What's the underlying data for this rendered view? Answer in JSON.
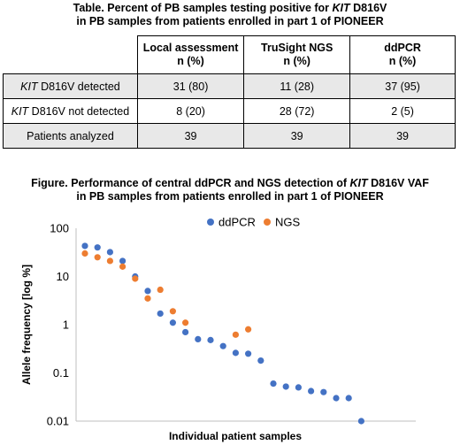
{
  "table": {
    "title_line1_pre": "Table. Percent of PB samples testing positive for ",
    "title_line1_italic": "KIT",
    "title_line1_post": " D816V",
    "title_line2": "in PB samples from patients enrolled in part 1 of PIONEER",
    "headers": [
      {
        "line1": "Local assessment",
        "line2": "n (%)"
      },
      {
        "line1": "TruSight NGS",
        "line2": "n (%)"
      },
      {
        "line1": "ddPCR",
        "line2": "n (%)"
      }
    ],
    "rows": [
      {
        "italic": "KIT",
        "label": " D816V detected",
        "cells": [
          "31 (80)",
          "11 (28)",
          "37 (95)"
        ],
        "shaded": true
      },
      {
        "italic": "KIT",
        "label": " D816V not detected",
        "cells": [
          "8 (20)",
          "28 (72)",
          "2 (5)"
        ],
        "shaded": false
      },
      {
        "italic": "",
        "label": "Patients analyzed",
        "cells": [
          "39",
          "39",
          "39"
        ],
        "shaded": true
      }
    ]
  },
  "figure": {
    "title_line1_pre": "Figure. Performance of central ddPCR and NGS detection of ",
    "title_line1_italic": "KIT",
    "title_line1_post": " D816V VAF",
    "title_line2": "in PB samples from patients enrolled in part 1 of PIONEER"
  },
  "chart_data": {
    "type": "scatter",
    "xlabel": "Individual patient samples",
    "ylabel": "Allele frequency [log %]",
    "yscale": "log",
    "ylim": [
      0.01,
      100
    ],
    "yticks": [
      "100",
      "10",
      "1",
      "0.1",
      "0.01"
    ],
    "legend_position": "top",
    "grid": false,
    "series": [
      {
        "name": "ddPCR",
        "color": "#4472c4",
        "points": [
          {
            "x": 1,
            "y": 43
          },
          {
            "x": 2,
            "y": 40
          },
          {
            "x": 3,
            "y": 32
          },
          {
            "x": 4,
            "y": 21
          },
          {
            "x": 5,
            "y": 10
          },
          {
            "x": 6,
            "y": 5
          },
          {
            "x": 7,
            "y": 1.7
          },
          {
            "x": 8,
            "y": 1.1
          },
          {
            "x": 9,
            "y": 0.7
          },
          {
            "x": 10,
            "y": 0.5
          },
          {
            "x": 11,
            "y": 0.48
          },
          {
            "x": 12,
            "y": 0.36
          },
          {
            "x": 13,
            "y": 0.26
          },
          {
            "x": 14,
            "y": 0.25
          },
          {
            "x": 15,
            "y": 0.18
          },
          {
            "x": 16,
            "y": 0.06
          },
          {
            "x": 17,
            "y": 0.052
          },
          {
            "x": 18,
            "y": 0.05
          },
          {
            "x": 19,
            "y": 0.042
          },
          {
            "x": 20,
            "y": 0.04
          },
          {
            "x": 21,
            "y": 0.03
          },
          {
            "x": 22,
            "y": 0.03
          },
          {
            "x": 23,
            "y": 0.01
          }
        ]
      },
      {
        "name": "NGS",
        "color": "#ed7d31",
        "points": [
          {
            "x": 1,
            "y": 30
          },
          {
            "x": 2,
            "y": 25
          },
          {
            "x": 3,
            "y": 21
          },
          {
            "x": 4,
            "y": 16
          },
          {
            "x": 5,
            "y": 9
          },
          {
            "x": 6,
            "y": 3.5
          },
          {
            "x": 7,
            "y": 5.3
          },
          {
            "x": 8,
            "y": 1.9
          },
          {
            "x": 9,
            "y": 1.1
          },
          {
            "x": 13,
            "y": 0.62
          },
          {
            "x": 14,
            "y": 0.8
          }
        ]
      }
    ]
  }
}
